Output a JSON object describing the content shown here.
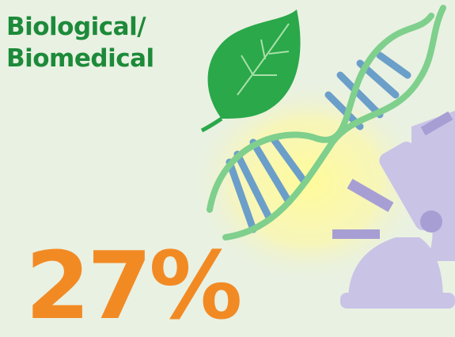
{
  "header": {
    "title": [
      "Biological/",
      "Biomedical"
    ]
  },
  "stat": {
    "text": "27%"
  }
}
